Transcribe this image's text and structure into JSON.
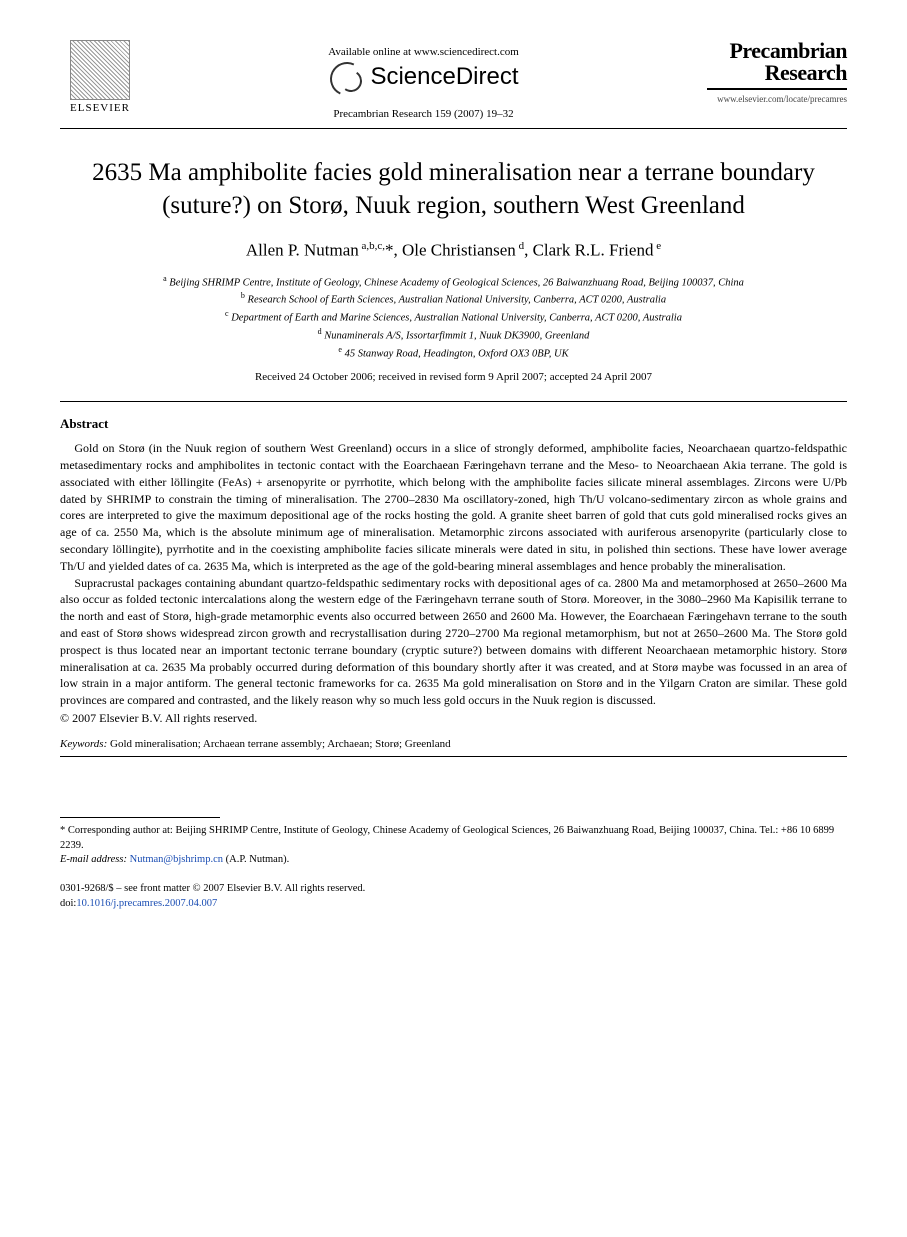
{
  "header": {
    "elsevier_label": "ELSEVIER",
    "available_online": "Available online at www.sciencedirect.com",
    "sciencedirect": "ScienceDirect",
    "journal_ref": "Precambrian Research 159 (2007) 19–32",
    "journal_name_line1": "Precambrian",
    "journal_name_line2": "Research",
    "journal_url": "www.elsevier.com/locate/precamres"
  },
  "title": "2635 Ma amphibolite facies gold mineralisation near a terrane boundary (suture?) on Storø, Nuuk region, southern West Greenland",
  "authors_html": "Allen P. Nutman <sup>a,b,c,</sup>*, Ole Christiansen <sup>d</sup>, Clark R.L. Friend <sup>e</sup>",
  "affiliations": {
    "a": "Beijing SHRIMP Centre, Institute of Geology, Chinese Academy of Geological Sciences, 26 Baiwanzhuang Road, Beijing 100037, China",
    "b": "Research School of Earth Sciences, Australian National University, Canberra, ACT 0200, Australia",
    "c": "Department of Earth and Marine Sciences, Australian National University, Canberra, ACT 0200, Australia",
    "d": "Nunaminerals A/S, Issortarfimmit 1, Nuuk DK3900, Greenland",
    "e": "45 Stanway Road, Headington, Oxford OX3 0BP, UK"
  },
  "history": "Received 24 October 2006; received in revised form 9 April 2007; accepted 24 April 2007",
  "abstract_heading": "Abstract",
  "abstract_paragraphs": [
    "Gold on Storø (in the Nuuk region of southern West Greenland) occurs in a slice of strongly deformed, amphibolite facies, Neoarchaean quartzo-feldspathic metasedimentary rocks and amphibolites in tectonic contact with the Eoarchaean Færingehavn terrane and the Meso- to Neoarchaean Akia terrane. The gold is associated with either löllingite (FeAs) + arsenopyrite or pyrrhotite, which belong with the amphibolite facies silicate mineral assemblages. Zircons were U/Pb dated by SHRIMP to constrain the timing of mineralisation. The 2700–2830 Ma oscillatory-zoned, high Th/U volcano-sedimentary zircon as whole grains and cores are interpreted to give the maximum depositional age of the rocks hosting the gold. A granite sheet barren of gold that cuts gold mineralised rocks gives an age of ca. 2550 Ma, which is the absolute minimum age of mineralisation. Metamorphic zircons associated with auriferous arsenopyrite (particularly close to secondary löllingite), pyrrhotite and in the coexisting amphibolite facies silicate minerals were dated in situ, in polished thin sections. These have lower average Th/U and yielded dates of ca. 2635 Ma, which is interpreted as the age of the gold-bearing mineral assemblages and hence probably the mineralisation.",
    "Supracrustal packages containing abundant quartzo-feldspathic sedimentary rocks with depositional ages of ca. 2800 Ma and metamorphosed at 2650–2600 Ma also occur as folded tectonic intercalations along the western edge of the Færingehavn terrane south of Storø. Moreover, in the 3080–2960 Ma Kapisilik terrane to the north and east of Storø, high-grade metamorphic events also occurred between 2650 and 2600 Ma. However, the Eoarchaean Færingehavn terrane to the south and east of Storø shows widespread zircon growth and recrystallisation during 2720–2700 Ma regional metamorphism, but not at 2650–2600 Ma. The Storø gold prospect is thus located near an important tectonic terrane boundary (cryptic suture?) between domains with different Neoarchaean metamorphic history. Storø mineralisation at ca. 2635 Ma probably occurred during deformation of this boundary shortly after it was created, and at Storø maybe was focussed in an area of low strain in a major antiform. The general tectonic frameworks for ca. 2635 Ma gold mineralisation on Storø and in the Yilgarn Craton are similar. These gold provinces are compared and contrasted, and the likely reason why so much less gold occurs in the Nuuk region is discussed."
  ],
  "copyright": "© 2007 Elsevier B.V. All rights reserved.",
  "keywords_label": "Keywords:",
  "keywords_text": " Gold mineralisation; Archaean terrane assembly; Archaean; Storø; Greenland",
  "footnote_corresponding": "* Corresponding author at: Beijing SHRIMP Centre, Institute of Geology, Chinese Academy of Geological Sciences, 26 Baiwanzhuang Road, Beijing 100037, China. Tel.: +86 10 6899 2239.",
  "footnote_email_label": "E-mail address:",
  "footnote_email": "Nutman@bjshrimp.cn",
  "footnote_email_tail": " (A.P. Nutman).",
  "bottom": {
    "line1": "0301-9268/$ – see front matter © 2007 Elsevier B.V. All rights reserved.",
    "doi_label": "doi:",
    "doi": "10.1016/j.precamres.2007.04.007"
  },
  "colors": {
    "text": "#000000",
    "link": "#1a4db3",
    "background": "#ffffff",
    "rule": "#000000"
  },
  "typography": {
    "body_font": "Times New Roman",
    "title_fontsize_pt": 19,
    "authors_fontsize_pt": 13,
    "affil_fontsize_pt": 8,
    "abstract_fontsize_pt": 9,
    "keywords_fontsize_pt": 8.5
  }
}
